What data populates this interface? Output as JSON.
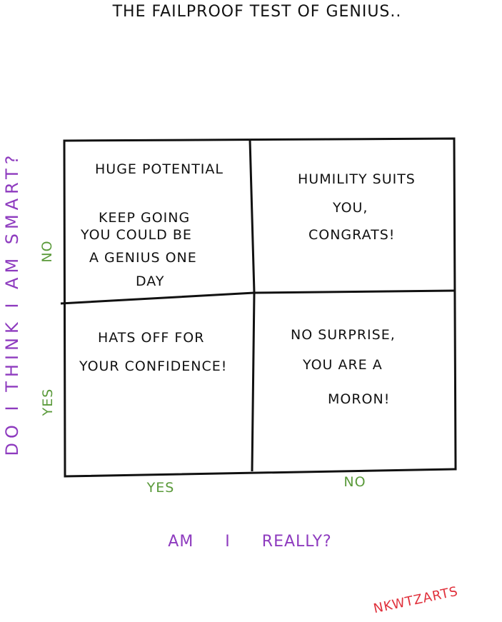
{
  "title": "THE FAILPROOF TEST OF GENIUS..",
  "y_axis": {
    "label": "DO I THINK I AM SMART?",
    "rows": [
      "NO",
      "YES"
    ]
  },
  "x_axis": {
    "label": "AM I REALLY?",
    "columns": [
      "YES",
      "NO"
    ]
  },
  "cells": [
    {
      "lines": [
        "HUGE POTENTIAL",
        "KEEP GOING",
        "YOU COULD BE",
        "A GENIUS ONE",
        "DAY"
      ]
    },
    {
      "lines": [
        "HUMILITY SUITS",
        "YOU,",
        "CONGRATS!"
      ]
    },
    {
      "lines": [
        "HATS OFF FOR",
        "YOUR CONFIDENCE!"
      ]
    },
    {
      "lines": [
        "NO SURPRISE,",
        "YOU ARE A",
        "MORON!"
      ]
    }
  ],
  "signature": "NKWTZARTS"
}
